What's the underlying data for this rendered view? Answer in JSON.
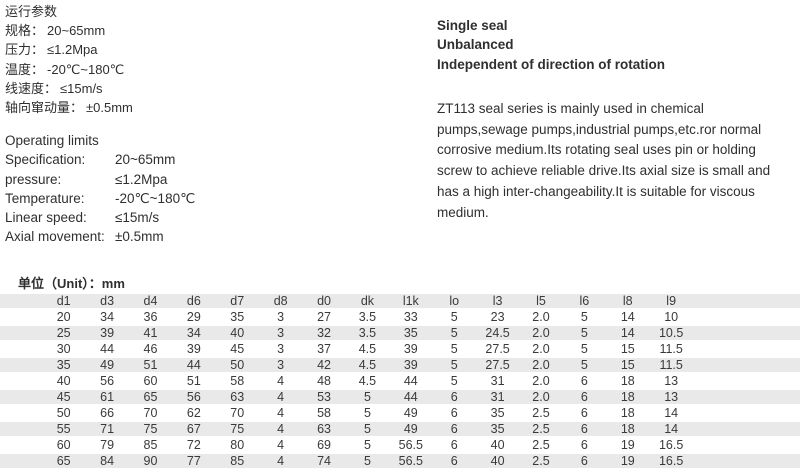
{
  "colors": {
    "stripe": "#e9e9e9",
    "text": "#2f2f2f"
  },
  "operating_params_cn": {
    "title": "运行参数",
    "items": [
      {
        "label": "规格：",
        "value": "20~65mm"
      },
      {
        "label": "压力：",
        "value": "≤1.2Mpa"
      },
      {
        "label": "温度：",
        "value": "-20℃~180℃"
      },
      {
        "label": "线速度：",
        "value": "≤15m/s"
      },
      {
        "label": "轴向窜动量：",
        "value": "±0.5mm"
      }
    ]
  },
  "operating_limits": {
    "title": "Operating limits",
    "items": [
      {
        "label": "Specification:",
        "value": "20~65mm"
      },
      {
        "label": "pressure:",
        "value": "≤1.2Mpa"
      },
      {
        "label": "Temperature:",
        "value": "-20℃~180℃"
      },
      {
        "label": "Linear speed:",
        "value": "≤15m/s"
      },
      {
        "label": "Axial movement:",
        "value": "±0.5mm"
      }
    ]
  },
  "product_info": {
    "features": [
      "Single seal",
      "Unbalanced",
      "Independent of direction of rotation"
    ],
    "description": "ZT113 seal series is mainly used in chemical pumps,sewage pumps,industrial pumps,etc.ror normal corrosive medium.Its rotating seal uses pin or holding screw to achieve reliable drive.Its axial size is small and has a high inter-changeability.It is suitable for viscous medium."
  },
  "table": {
    "unit_label": "单位（Unit）：mm",
    "columns": [
      "d1",
      "d3",
      "d4",
      "d6",
      "d7",
      "d8",
      "d0",
      "dk",
      "l1k",
      "lo",
      "l3",
      "l5",
      "l6",
      "l8",
      "l9"
    ],
    "rows": [
      [
        "20",
        "34",
        "36",
        "29",
        "35",
        "3",
        "27",
        "3.5",
        "33",
        "5",
        "23",
        "2.0",
        "5",
        "14",
        "10"
      ],
      [
        "25",
        "39",
        "41",
        "34",
        "40",
        "3",
        "32",
        "3.5",
        "35",
        "5",
        "24.5",
        "2.0",
        "5",
        "14",
        "10.5"
      ],
      [
        "30",
        "44",
        "46",
        "39",
        "45",
        "3",
        "37",
        "4.5",
        "39",
        "5",
        "27.5",
        "2.0",
        "5",
        "15",
        "11.5"
      ],
      [
        "35",
        "49",
        "51",
        "44",
        "50",
        "3",
        "42",
        "4.5",
        "39",
        "5",
        "27.5",
        "2.0",
        "5",
        "15",
        "11.5"
      ],
      [
        "40",
        "56",
        "60",
        "51",
        "58",
        "4",
        "48",
        "4.5",
        "44",
        "5",
        "31",
        "2.0",
        "6",
        "18",
        "13"
      ],
      [
        "45",
        "61",
        "65",
        "56",
        "63",
        "4",
        "53",
        "5",
        "44",
        "6",
        "31",
        "2.0",
        "6",
        "18",
        "13"
      ],
      [
        "50",
        "66",
        "70",
        "62",
        "70",
        "4",
        "58",
        "5",
        "49",
        "6",
        "35",
        "2.5",
        "6",
        "18",
        "14"
      ],
      [
        "55",
        "71",
        "75",
        "67",
        "75",
        "4",
        "63",
        "5",
        "49",
        "6",
        "35",
        "2.5",
        "6",
        "18",
        "14"
      ],
      [
        "60",
        "79",
        "85",
        "72",
        "80",
        "4",
        "69",
        "5",
        "56.5",
        "6",
        "40",
        "2.5",
        "6",
        "19",
        "16.5"
      ],
      [
        "65",
        "84",
        "90",
        "77",
        "85",
        "4",
        "74",
        "5",
        "56.5",
        "6",
        "40",
        "2.5",
        "6",
        "19",
        "16.5"
      ]
    ]
  }
}
